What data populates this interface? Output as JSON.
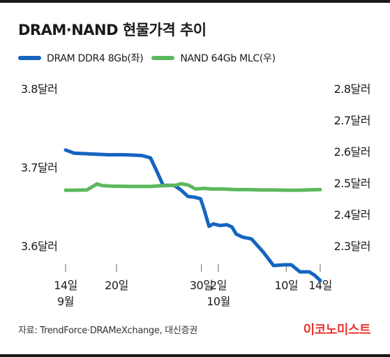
{
  "title": "DRAM·NAND 현물가격 추이",
  "source": "자료: TrendForce·DRAMeXchange, 대신증권",
  "brand": "이코노미스트",
  "colors": {
    "dram": "#1565c0",
    "nand": "#5cb85c",
    "brand": "#e8352d",
    "axis": "#666666"
  },
  "chart_data": {
    "type": "line",
    "title": "DRAM·NAND 현물가격 추이",
    "x_label_units": "date",
    "x_ticks": [
      {
        "value": 0,
        "line1": "14일",
        "line2": "9월"
      },
      {
        "value": 6,
        "line1": "20일",
        "line2": ""
      },
      {
        "value": 16,
        "line1": "30일",
        "line2": ""
      },
      {
        "value": 18,
        "line1": "2일",
        "line2": "10월"
      },
      {
        "value": 26,
        "line1": "10일",
        "line2": ""
      },
      {
        "value": 30,
        "line1": "14일",
        "line2": ""
      }
    ],
    "x_range": [
      0,
      30
    ],
    "left_axis": {
      "series": "DRAM DDR4 8Gb(좌)",
      "ylim": [
        3.6,
        3.8
      ],
      "ticks": [
        {
          "value": 3.8,
          "label": "3.8달러"
        },
        {
          "value": 3.7,
          "label": "3.7달러"
        },
        {
          "value": 3.6,
          "label": "3.6달러"
        }
      ]
    },
    "right_axis": {
      "series": "NAND 64Gb MLC(우)",
      "ylim": [
        2.3,
        2.8
      ],
      "ticks": [
        {
          "value": 2.8,
          "label": "2.8달러"
        },
        {
          "value": 2.7,
          "label": "2.7달러"
        },
        {
          "value": 2.6,
          "label": "2.6달러"
        },
        {
          "value": 2.5,
          "label": "2.5달러"
        },
        {
          "value": 2.4,
          "label": "2.4달러"
        },
        {
          "value": 2.3,
          "label": "2.3달러"
        }
      ]
    },
    "series": [
      {
        "name": "DRAM DDR4 8Gb(좌)",
        "axis": "left",
        "color": "#1565c0",
        "x": [
          0,
          1,
          3,
          5,
          7,
          9,
          10,
          10.7,
          11.5,
          12.8,
          13.6,
          14.4,
          15.2,
          15.9,
          16.3,
          16.9,
          17.4,
          18.2,
          19.0,
          19.6,
          20.1,
          20.9,
          21.9,
          23.3,
          24.5,
          25.8,
          26.6,
          27.6,
          28.7,
          29.3,
          30
        ],
        "y": [
          3.722,
          3.718,
          3.717,
          3.716,
          3.716,
          3.715,
          3.712,
          3.696,
          3.677,
          3.677,
          3.671,
          3.663,
          3.662,
          3.66,
          3.647,
          3.625,
          3.628,
          3.626,
          3.627,
          3.624,
          3.615,
          3.611,
          3.609,
          3.592,
          3.575,
          3.576,
          3.576,
          3.567,
          3.567,
          3.563,
          3.556
        ]
      },
      {
        "name": "NAND 64Gb MLC(우)",
        "axis": "right",
        "color": "#5cb85c",
        "x": [
          0,
          1,
          2.5,
          3.7,
          4.3,
          5.5,
          8,
          10,
          11,
          12,
          13,
          13.6,
          14.5,
          15.3,
          16.4,
          17.1,
          18.5,
          20,
          21.5,
          23,
          24.5,
          26,
          27.5,
          28.5,
          30
        ],
        "y": [
          2.477,
          2.477,
          2.478,
          2.497,
          2.492,
          2.49,
          2.489,
          2.489,
          2.491,
          2.492,
          2.493,
          2.498,
          2.493,
          2.481,
          2.483,
          2.481,
          2.481,
          2.479,
          2.479,
          2.478,
          2.478,
          2.477,
          2.477,
          2.478,
          2.479
        ]
      }
    ]
  }
}
